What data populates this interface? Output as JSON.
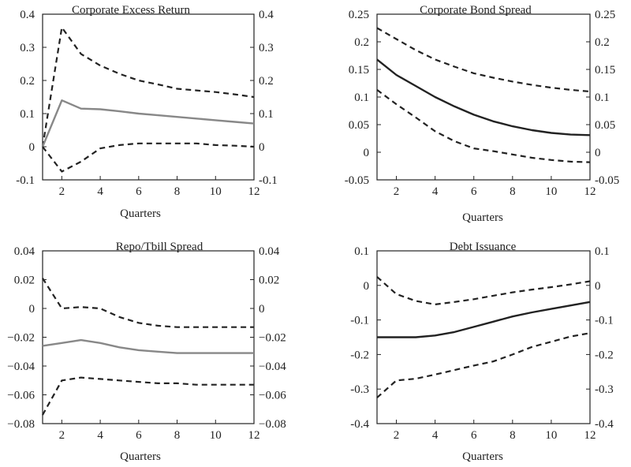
{
  "chart_data": [
    {
      "type": "line",
      "title": "Corporate Excess Return",
      "xlabel": "Quarters",
      "ylabel": "",
      "xlim": [
        1,
        12
      ],
      "ylim": [
        -0.1,
        0.4
      ],
      "xticks": [
        2,
        4,
        6,
        8,
        10,
        12
      ],
      "xtick_labels": [
        "2",
        "4",
        "6",
        "8",
        "10",
        "12"
      ],
      "yticks": [
        -0.1,
        0,
        0.1,
        0.2,
        0.3,
        0.4
      ],
      "ytick_labels": [
        "-0.1",
        "0",
        "0.1",
        "0.2",
        "0.3",
        "0.4"
      ],
      "right_ticks": true,
      "x": [
        1,
        2,
        3,
        4,
        5,
        6,
        7,
        8,
        9,
        10,
        11,
        12
      ],
      "series": [
        {
          "role": "upper",
          "style": "dashed",
          "color": "#222222",
          "values": [
            0.0,
            0.36,
            0.28,
            0.245,
            0.22,
            0.2,
            0.188,
            0.175,
            0.17,
            0.165,
            0.158,
            0.15
          ]
        },
        {
          "role": "estimate",
          "style": "solid",
          "color": "#888888",
          "values": [
            0.0,
            0.14,
            0.115,
            0.113,
            0.107,
            0.1,
            0.095,
            0.09,
            0.085,
            0.08,
            0.075,
            0.07
          ]
        },
        {
          "role": "lower",
          "style": "dashed",
          "color": "#222222",
          "values": [
            0.0,
            -0.075,
            -0.045,
            -0.005,
            0.005,
            0.01,
            0.01,
            0.01,
            0.01,
            0.005,
            0.003,
            0.0
          ]
        }
      ]
    },
    {
      "type": "line",
      "title": "Corporate Bond Spread",
      "xlabel": "Quarters",
      "ylabel": "",
      "xlim": [
        1,
        12
      ],
      "ylim": [
        -0.05,
        0.25
      ],
      "xticks": [
        2,
        4,
        6,
        8,
        10,
        12
      ],
      "xtick_labels": [
        "2",
        "4",
        "6",
        "8",
        "10",
        "12"
      ],
      "yticks": [
        -0.05,
        0,
        0.05,
        0.1,
        0.15,
        0.2,
        0.25
      ],
      "ytick_labels": [
        "-0.05",
        "0",
        "0.05",
        "0.1",
        "0.15",
        "0.2",
        "0.25"
      ],
      "right_ticks": true,
      "x": [
        1,
        2,
        3,
        4,
        5,
        6,
        7,
        8,
        9,
        10,
        11,
        12
      ],
      "series": [
        {
          "role": "upper",
          "style": "dashed",
          "color": "#222222",
          "values": [
            0.225,
            0.205,
            0.185,
            0.168,
            0.155,
            0.143,
            0.135,
            0.128,
            0.122,
            0.117,
            0.113,
            0.11
          ]
        },
        {
          "role": "estimate",
          "style": "solid",
          "color": "#222222",
          "values": [
            0.168,
            0.14,
            0.12,
            0.1,
            0.083,
            0.068,
            0.056,
            0.047,
            0.04,
            0.035,
            0.032,
            0.031
          ]
        },
        {
          "role": "lower",
          "style": "dashed",
          "color": "#222222",
          "values": [
            0.113,
            0.087,
            0.063,
            0.038,
            0.02,
            0.007,
            0.002,
            -0.004,
            -0.01,
            -0.014,
            -0.017,
            -0.018
          ]
        }
      ]
    },
    {
      "type": "line",
      "title": "Repo/Tbill Spread",
      "xlabel": "Quarters",
      "ylabel": "",
      "xlim": [
        1,
        12
      ],
      "ylim": [
        -0.08,
        0.04
      ],
      "xticks": [
        2,
        4,
        6,
        8,
        10,
        12
      ],
      "xtick_labels": [
        "2",
        "4",
        "6",
        "8",
        "10",
        "12"
      ],
      "yticks": [
        -0.08,
        -0.06,
        -0.04,
        -0.02,
        0,
        0.02,
        0.04
      ],
      "ytick_labels": [
        "−0.08",
        "−0.06",
        "−0.04",
        "−0.02",
        "0",
        "0.02",
        "0.04"
      ],
      "right_ticks": true,
      "x": [
        1,
        2,
        3,
        4,
        5,
        6,
        7,
        8,
        9,
        10,
        11,
        12
      ],
      "series": [
        {
          "role": "upper",
          "style": "dashed",
          "color": "#222222",
          "values": [
            0.021,
            0.0,
            0.001,
            0.0,
            -0.006,
            -0.01,
            -0.012,
            -0.013,
            -0.013,
            -0.013,
            -0.013,
            -0.013
          ]
        },
        {
          "role": "estimate",
          "style": "solid",
          "color": "#888888",
          "values": [
            -0.026,
            -0.024,
            -0.022,
            -0.024,
            -0.027,
            -0.029,
            -0.03,
            -0.031,
            -0.031,
            -0.031,
            -0.031,
            -0.031
          ]
        },
        {
          "role": "lower",
          "style": "dashed",
          "color": "#222222",
          "values": [
            -0.074,
            -0.05,
            -0.048,
            -0.049,
            -0.05,
            -0.051,
            -0.052,
            -0.052,
            -0.053,
            -0.053,
            -0.053,
            -0.053
          ]
        }
      ]
    },
    {
      "type": "line",
      "title": "Debt Issuance",
      "xlabel": "Quarters",
      "ylabel": "",
      "xlim": [
        1,
        12
      ],
      "ylim": [
        -0.4,
        0.1
      ],
      "xticks": [
        2,
        4,
        6,
        8,
        10,
        12
      ],
      "xtick_labels": [
        "2",
        "4",
        "6",
        "8",
        "10",
        "12"
      ],
      "yticks": [
        -0.4,
        -0.3,
        -0.2,
        -0.1,
        0,
        0.1
      ],
      "ytick_labels": [
        "-0.4",
        "-0.3",
        "-0.2",
        "-0.1",
        "0",
        "0.1"
      ],
      "right_ticks": true,
      "x": [
        1,
        2,
        3,
        4,
        5,
        6,
        7,
        8,
        9,
        10,
        11,
        12
      ],
      "series": [
        {
          "role": "upper",
          "style": "dashed",
          "color": "#222222",
          "values": [
            0.025,
            -0.025,
            -0.045,
            -0.055,
            -0.048,
            -0.04,
            -0.03,
            -0.02,
            -0.012,
            -0.005,
            0.003,
            0.012
          ]
        },
        {
          "role": "estimate",
          "style": "solid",
          "color": "#222222",
          "values": [
            -0.15,
            -0.15,
            -0.15,
            -0.145,
            -0.135,
            -0.12,
            -0.105,
            -0.09,
            -0.078,
            -0.068,
            -0.058,
            -0.048
          ]
        },
        {
          "role": "lower",
          "style": "dashed",
          "color": "#222222",
          "values": [
            -0.325,
            -0.275,
            -0.27,
            -0.258,
            -0.245,
            -0.232,
            -0.22,
            -0.2,
            -0.178,
            -0.163,
            -0.148,
            -0.138
          ]
        }
      ]
    }
  ]
}
